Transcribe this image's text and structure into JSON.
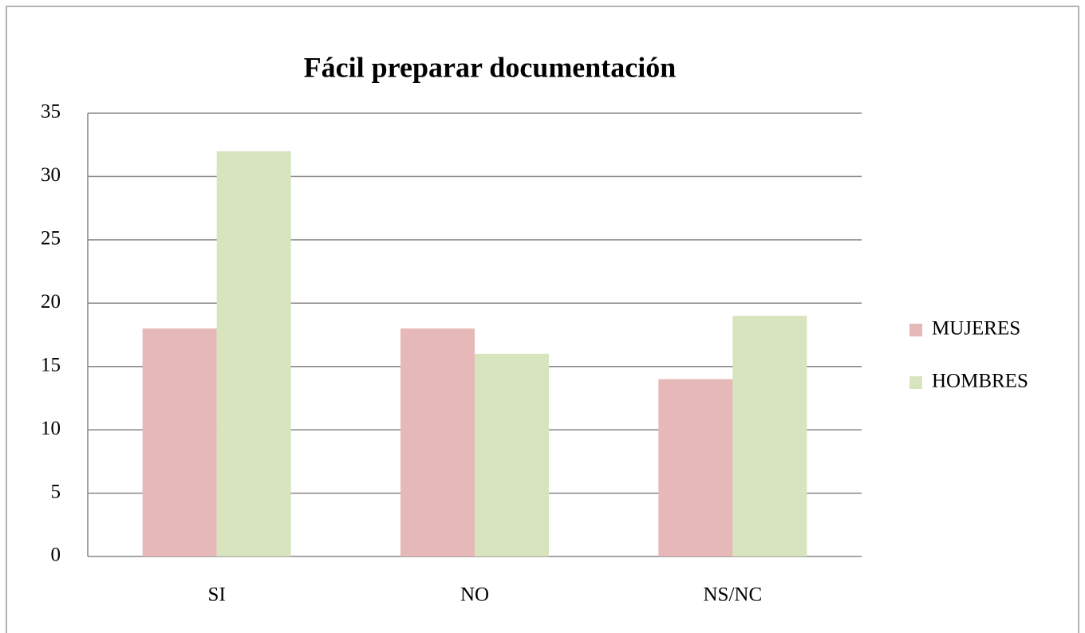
{
  "chart_data": {
    "type": "bar",
    "title": "Fácil preparar documentación",
    "categories": [
      "SI",
      "NO",
      "NS/NC"
    ],
    "series": [
      {
        "name": "MUJERES",
        "color": "#e6b8b7",
        "values": [
          18,
          18,
          14
        ]
      },
      {
        "name": "HOMBRES",
        "color": "#d7e4bd",
        "values": [
          32,
          16,
          19
        ]
      }
    ],
    "ylim": [
      0,
      35
    ],
    "yticks": [
      0,
      5,
      10,
      15,
      20,
      25,
      30,
      35
    ],
    "grid": true,
    "legend": "right"
  }
}
